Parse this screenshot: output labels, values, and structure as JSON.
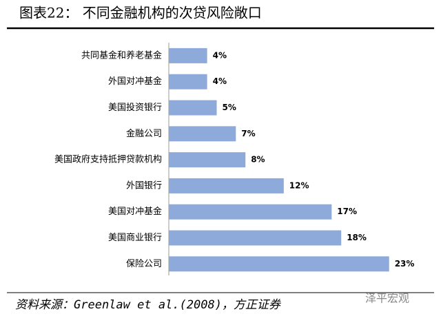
{
  "chart_data": {
    "type": "hbar",
    "title": "图表22：  不同金融机构的次贷风险敞口",
    "categories": [
      "共同基金和养老基金",
      "外国对冲基金",
      "美国投资银行",
      "金融公司",
      "美国政府支持抵押贷款机构",
      "外国银行",
      "美国对冲基金",
      "美国商业银行",
      "保险公司"
    ],
    "values": [
      4,
      4,
      5,
      7,
      8,
      12,
      17,
      18,
      23
    ],
    "value_labels": [
      "4%",
      "4%",
      "5%",
      "7%",
      "8%",
      "12%",
      "17%",
      "18%",
      "23%"
    ],
    "color": "#8eaadb",
    "source": "资料来源：Greenlaw et al.(2008)，方正证券",
    "watermark": "泽平宏观"
  }
}
